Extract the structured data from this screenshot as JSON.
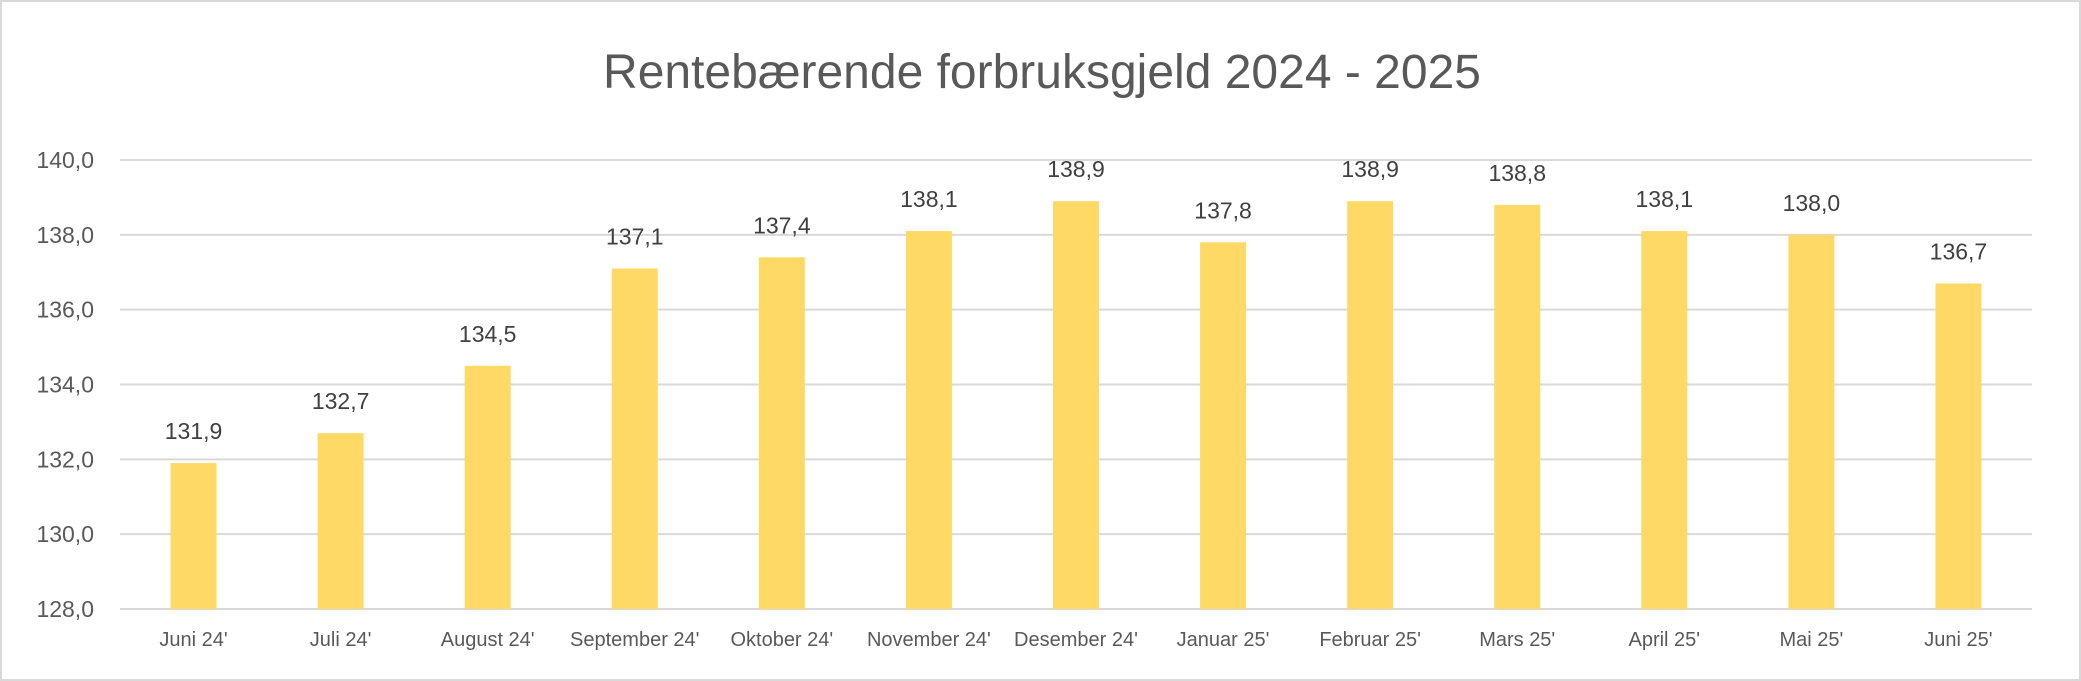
{
  "chart_data": {
    "type": "bar",
    "title": "Rentebærende forbruksgjeld 2024 - 2025",
    "xlabel": "",
    "ylabel": "",
    "categories": [
      "Juni 24'",
      "Juli 24'",
      "August 24'",
      "September 24'",
      "Oktober 24'",
      "November 24'",
      "Desember 24'",
      "Januar 25'",
      "Februar 25'",
      "Mars 25'",
      "April 25'",
      "Mai 25'",
      "Juni 25'"
    ],
    "values": [
      131.9,
      132.7,
      134.5,
      137.1,
      137.4,
      138.1,
      138.9,
      137.8,
      138.9,
      138.8,
      138.1,
      138.0,
      136.7
    ],
    "data_labels": [
      "131,9",
      "132,7",
      "134,5",
      "137,1",
      "137,4",
      "138,1",
      "138,9",
      "137,8",
      "138,9",
      "138,8",
      "138,1",
      "138,0",
      "136,7"
    ],
    "ylim": [
      128,
      140
    ],
    "yticks": [
      128,
      130,
      132,
      134,
      136,
      138,
      140
    ],
    "ytick_labels": [
      "128,0",
      "130,0",
      "132,0",
      "134,0",
      "136,0",
      "138,0",
      "140,0"
    ],
    "grid": true,
    "legend": "none",
    "colors": {
      "bar": "#FFD966",
      "grid": "#d9d9d9",
      "text": "#595959"
    }
  }
}
